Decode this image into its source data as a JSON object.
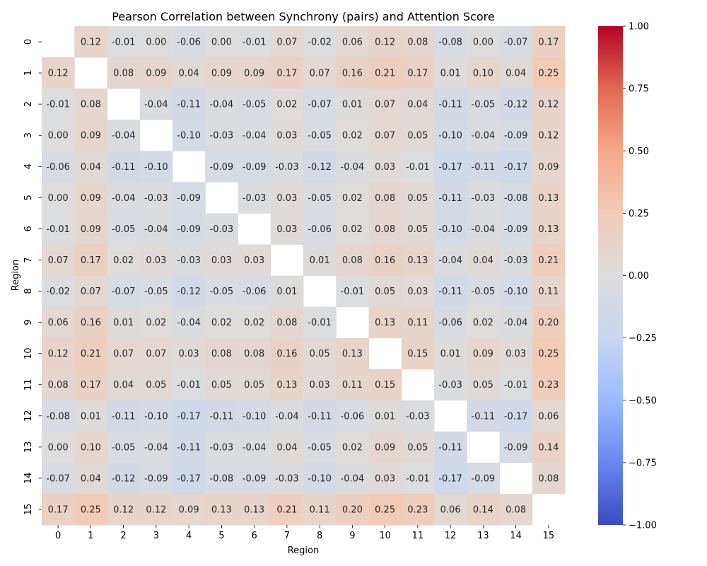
{
  "chart_data": {
    "type": "heatmap",
    "title": "Pearson Correlation between Synchrony (pairs) and Attention Score",
    "xlabel": "Region",
    "ylabel": "Region",
    "x_categories": [
      "0",
      "1",
      "2",
      "3",
      "4",
      "5",
      "6",
      "7",
      "8",
      "9",
      "10",
      "11",
      "12",
      "13",
      "14",
      "15"
    ],
    "y_categories": [
      "0",
      "1",
      "2",
      "3",
      "4",
      "5",
      "6",
      "7",
      "8",
      "9",
      "10",
      "11",
      "12",
      "13",
      "14",
      "15"
    ],
    "values": [
      [
        null,
        0.12,
        -0.01,
        -0.0,
        -0.06,
        0.0,
        -0.01,
        0.07,
        -0.02,
        0.06,
        0.12,
        0.08,
        -0.08,
        -0.0,
        -0.07,
        0.17
      ],
      [
        0.12,
        null,
        0.08,
        0.09,
        0.04,
        0.09,
        0.09,
        0.17,
        0.07,
        0.16,
        0.21,
        0.17,
        0.01,
        0.1,
        0.04,
        0.25
      ],
      [
        -0.01,
        0.08,
        null,
        -0.04,
        -0.11,
        -0.04,
        -0.05,
        0.02,
        -0.07,
        0.01,
        0.07,
        0.04,
        -0.11,
        -0.05,
        -0.12,
        0.12
      ],
      [
        -0.0,
        0.09,
        -0.04,
        null,
        -0.1,
        -0.03,
        -0.04,
        0.03,
        -0.05,
        0.02,
        0.07,
        0.05,
        -0.1,
        -0.04,
        -0.09,
        0.12
      ],
      [
        -0.06,
        0.04,
        -0.11,
        -0.1,
        null,
        -0.09,
        -0.09,
        -0.03,
        -0.12,
        -0.04,
        0.03,
        -0.01,
        -0.17,
        -0.11,
        -0.17,
        0.09
      ],
      [
        0.0,
        0.09,
        -0.04,
        -0.03,
        -0.09,
        null,
        -0.03,
        0.03,
        -0.05,
        0.02,
        0.08,
        0.05,
        -0.11,
        -0.03,
        -0.08,
        0.13
      ],
      [
        -0.01,
        0.09,
        -0.05,
        -0.04,
        -0.09,
        -0.03,
        null,
        0.03,
        -0.06,
        0.02,
        0.08,
        0.05,
        -0.1,
        -0.04,
        -0.09,
        0.13
      ],
      [
        0.07,
        0.17,
        0.02,
        0.03,
        -0.03,
        0.03,
        0.03,
        null,
        0.01,
        0.08,
        0.16,
        0.13,
        -0.04,
        0.04,
        -0.03,
        0.21
      ],
      [
        -0.02,
        0.07,
        -0.07,
        -0.05,
        -0.12,
        -0.05,
        -0.06,
        0.01,
        null,
        -0.01,
        0.05,
        0.03,
        -0.11,
        -0.05,
        -0.1,
        0.11
      ],
      [
        0.06,
        0.16,
        0.01,
        0.02,
        -0.04,
        0.02,
        0.02,
        0.08,
        -0.01,
        null,
        0.13,
        0.11,
        -0.06,
        0.02,
        -0.04,
        0.2
      ],
      [
        0.12,
        0.21,
        0.07,
        0.07,
        0.03,
        0.08,
        0.08,
        0.16,
        0.05,
        0.13,
        null,
        0.15,
        0.01,
        0.09,
        0.03,
        0.25
      ],
      [
        0.08,
        0.17,
        0.04,
        0.05,
        -0.01,
        0.05,
        0.05,
        0.13,
        0.03,
        0.11,
        0.15,
        null,
        -0.03,
        0.05,
        -0.01,
        0.23
      ],
      [
        -0.08,
        0.01,
        -0.11,
        -0.1,
        -0.17,
        -0.11,
        -0.1,
        -0.04,
        -0.11,
        -0.06,
        0.01,
        -0.03,
        null,
        -0.11,
        -0.17,
        0.06
      ],
      [
        -0.0,
        0.1,
        -0.05,
        -0.04,
        -0.11,
        -0.03,
        -0.04,
        0.04,
        -0.05,
        0.02,
        0.09,
        0.05,
        -0.11,
        null,
        -0.09,
        0.14
      ],
      [
        -0.07,
        0.04,
        -0.12,
        -0.09,
        -0.17,
        -0.08,
        -0.09,
        -0.03,
        -0.1,
        -0.04,
        0.03,
        -0.01,
        -0.17,
        -0.09,
        null,
        0.08
      ],
      [
        0.17,
        0.25,
        0.12,
        0.12,
        0.09,
        0.13,
        0.13,
        0.21,
        0.11,
        0.2,
        0.25,
        0.23,
        0.06,
        0.14,
        0.08,
        null
      ]
    ],
    "value_format": "0.00",
    "colormap": "coolwarm",
    "colormap_stops": [
      "#3b4cc0",
      "#6788ee",
      "#9abbff",
      "#c9d7f0",
      "#dddddd",
      "#f2cbb7",
      "#f7a889",
      "#e26952",
      "#b40426"
    ],
    "vmin": -1.0,
    "vmax": 1.0,
    "colorbar": {
      "ticks": [
        -1.0,
        -0.75,
        -0.5,
        -0.25,
        0.0,
        0.25,
        0.5,
        0.75,
        1.0
      ],
      "tick_labels": [
        "−1.00",
        "−0.75",
        "−0.50",
        "−0.25",
        "0.00",
        "0.25",
        "0.50",
        "0.75",
        "1.00"
      ]
    }
  }
}
